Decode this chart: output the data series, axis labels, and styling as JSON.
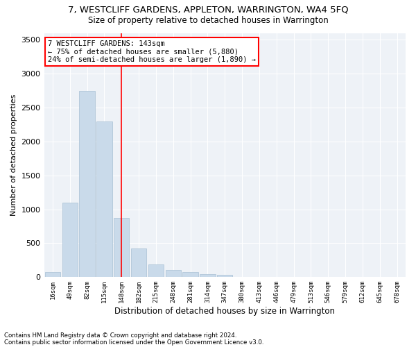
{
  "title": "7, WESTCLIFF GARDENS, APPLETON, WARRINGTON, WA4 5FQ",
  "subtitle": "Size of property relative to detached houses in Warrington",
  "xlabel": "Distribution of detached houses by size in Warrington",
  "ylabel": "Number of detached properties",
  "bar_color": "#c9daea",
  "bar_edge_color": "#a8c0d4",
  "background_color": "#eef2f7",
  "vline_color": "red",
  "annotation_text": "7 WESTCLIFF GARDENS: 143sqm\n← 75% of detached houses are smaller (5,880)\n24% of semi-detached houses are larger (1,890) →",
  "annotation_box_color": "white",
  "annotation_box_edge": "red",
  "ylim": [
    0,
    3600
  ],
  "yticks": [
    0,
    500,
    1000,
    1500,
    2000,
    2500,
    3000,
    3500
  ],
  "categories": [
    "16sqm",
    "49sqm",
    "82sqm",
    "115sqm",
    "148sqm",
    "182sqm",
    "215sqm",
    "248sqm",
    "281sqm",
    "314sqm",
    "347sqm",
    "380sqm",
    "413sqm",
    "446sqm",
    "479sqm",
    "513sqm",
    "546sqm",
    "579sqm",
    "612sqm",
    "645sqm",
    "678sqm"
  ],
  "bar_heights": [
    75,
    1100,
    2750,
    2300,
    870,
    420,
    185,
    110,
    70,
    40,
    30,
    0,
    0,
    0,
    0,
    0,
    0,
    0,
    0,
    0,
    0
  ],
  "footer1": "Contains HM Land Registry data © Crown copyright and database right 2024.",
  "footer2": "Contains public sector information licensed under the Open Government Licence v3.0."
}
